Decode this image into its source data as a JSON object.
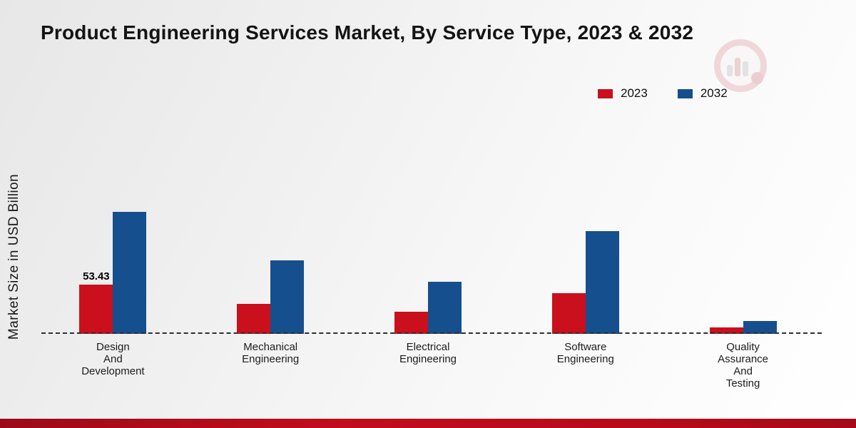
{
  "title": "Product Engineering Services Market, By Service Type, 2023 & 2032",
  "y_axis_label": "Market Size in USD Billion",
  "legend": [
    {
      "label": "2023",
      "color": "#c9101c"
    },
    {
      "label": "2032",
      "color": "#164f8d"
    }
  ],
  "chart_data": {
    "type": "bar",
    "title": "Product Engineering Services Market, By Service Type, 2023 & 2032",
    "ylabel": "Market Size in USD Billion",
    "categories": [
      "Design And Development",
      "Mechanical Engineering",
      "Electrical Engineering",
      "Software Engineering",
      "Quality Assurance And Testing"
    ],
    "category_lines": [
      [
        "Design",
        "And",
        "Development"
      ],
      [
        "Mechanical",
        "Engineering"
      ],
      [
        "Electrical",
        "Engineering"
      ],
      [
        "Software",
        "Engineering"
      ],
      [
        "Quality",
        "Assurance",
        "And",
        "Testing"
      ]
    ],
    "series": [
      {
        "name": "2023",
        "color": "#c9101c",
        "values": [
          53.43,
          33,
          24,
          44,
          7
        ]
      },
      {
        "name": "2032",
        "color": "#164f8d",
        "values": [
          133,
          80,
          57,
          112,
          14
        ]
      }
    ],
    "ylim": [
      0,
      140
    ],
    "grid": false,
    "legend_position": "top-right",
    "baseline_style": "dashed",
    "annotations": [
      {
        "series_index": 0,
        "category_index": 0,
        "text": "53.43"
      }
    ]
  }
}
